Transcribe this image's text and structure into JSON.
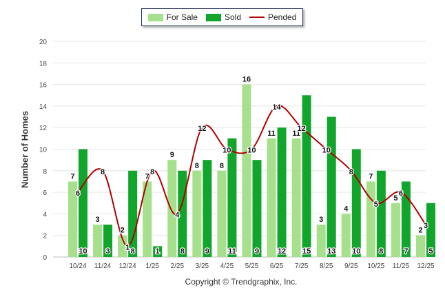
{
  "colors": {
    "for_sale": "#a6e08c",
    "sold": "#12a52c",
    "pended": "#b00000"
  },
  "legend": {
    "for_sale": "For Sale",
    "sold": "Sold",
    "pended": "Pended"
  },
  "copyright": "Copyright © Trendgraphix, Inc.",
  "chart_data": {
    "type": "bar",
    "title": "",
    "xlabel": "",
    "ylabel": "Number of Homes",
    "ylim": [
      0,
      20
    ],
    "yticks": [
      0,
      2,
      4,
      6,
      8,
      10,
      12,
      14,
      16,
      18,
      20
    ],
    "grid": true,
    "legend_position": "top-center",
    "categories": [
      "10/24",
      "11/24",
      "12/24",
      "1/25",
      "2/25",
      "3/25",
      "4/25",
      "5/25",
      "6/25",
      "7/25",
      "8/25",
      "9/25",
      "10/25",
      "11/25",
      "12/25"
    ],
    "series": [
      {
        "name": "For Sale",
        "type": "bar",
        "values": [
          7,
          3,
          2,
          7,
          9,
          8,
          8,
          16,
          11,
          11,
          3,
          4,
          7,
          5,
          2
        ]
      },
      {
        "name": "Sold",
        "type": "bar",
        "values": [
          10,
          3,
          8,
          1,
          8,
          9,
          11,
          9,
          12,
          15,
          13,
          10,
          8,
          7,
          5
        ]
      },
      {
        "name": "Pended",
        "type": "line",
        "values": [
          6,
          8,
          1,
          8,
          4,
          12,
          10,
          10,
          14,
          12,
          10,
          8,
          5,
          6,
          3
        ]
      }
    ]
  }
}
